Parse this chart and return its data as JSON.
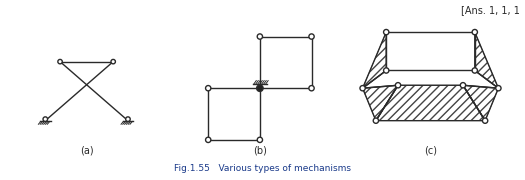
{
  "title": "Fig.1.55   Various types of mechanisms",
  "ans_text": "[Ans. 1, 1, 1",
  "bg_color": "#ffffff",
  "line_color": "#2a2a2a",
  "label_a": "(a)",
  "label_b": "(b)",
  "label_c": "(c)",
  "fig_label_color": "#1a3a8a",
  "fig_title_bold": false
}
